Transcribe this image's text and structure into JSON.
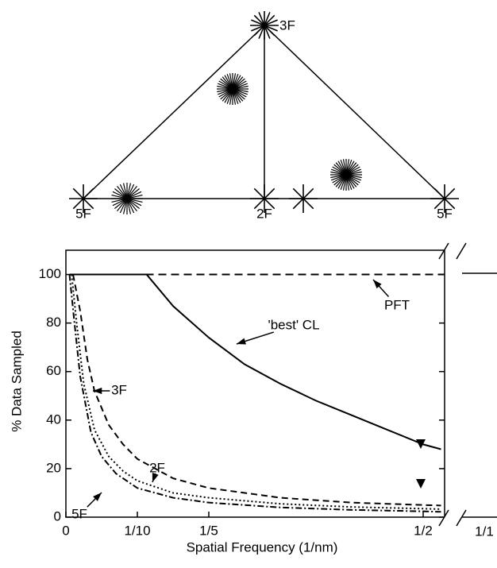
{
  "diagram": {
    "labels": [
      "3F",
      "5F",
      "2F",
      "5F"
    ]
  },
  "chart_data": {
    "type": "line",
    "xlabel": "Spatial Frequency (1/nm)",
    "ylabel": "% Data Sampled",
    "xlim": [
      0,
      0.53
    ],
    "ylim": [
      0,
      110
    ],
    "xticks": [
      0,
      {
        "value": 0.1,
        "label": "1/10"
      },
      {
        "value": 0.2,
        "label": "1/5"
      },
      {
        "value": 0.5,
        "label": "1/2"
      }
    ],
    "x_break_label": "1/1",
    "yticks": [
      0,
      20,
      40,
      60,
      80,
      100
    ],
    "series": [
      {
        "name": "PFT",
        "color": "#000000",
        "dash": "10 6",
        "x": [
          0.005,
          0.53
        ],
        "values": [
          100,
          100
        ]
      },
      {
        "name": "'best' CL",
        "color": "#000000",
        "dash": "none",
        "x": [
          0.005,
          0.113,
          0.15,
          0.2,
          0.25,
          0.3,
          0.35,
          0.4,
          0.45,
          0.5,
          0.525
        ],
        "values": [
          100,
          100,
          87,
          74,
          63,
          55,
          48,
          42,
          36,
          30,
          28
        ]
      },
      {
        "name": "3F",
        "color": "#000000",
        "dash": "8 5",
        "x": [
          0.01,
          0.02,
          0.03,
          0.04,
          0.06,
          0.08,
          0.1,
          0.15,
          0.2,
          0.3,
          0.4,
          0.5,
          0.525
        ],
        "values": [
          100,
          85,
          65,
          52,
          38,
          30,
          24,
          16,
          12,
          8,
          6,
          5,
          4.8
        ]
      },
      {
        "name": "2F",
        "color": "#000000",
        "dash": "2 3",
        "x": [
          0.008,
          0.015,
          0.025,
          0.04,
          0.06,
          0.08,
          0.1,
          0.15,
          0.2,
          0.3,
          0.4,
          0.5,
          0.525
        ],
        "values": [
          100,
          80,
          55,
          36,
          25,
          19,
          15,
          10,
          8,
          5.5,
          4.2,
          3.5,
          3.3
        ]
      },
      {
        "name": "5F",
        "color": "#000000",
        "dash": "8 3 2 3",
        "x": [
          0.005,
          0.012,
          0.02,
          0.035,
          0.05,
          0.07,
          0.1,
          0.15,
          0.2,
          0.3,
          0.4,
          0.5,
          0.525
        ],
        "values": [
          100,
          80,
          58,
          35,
          25,
          18,
          12,
          8,
          6,
          4,
          3,
          2.4,
          2.2
        ]
      }
    ]
  }
}
